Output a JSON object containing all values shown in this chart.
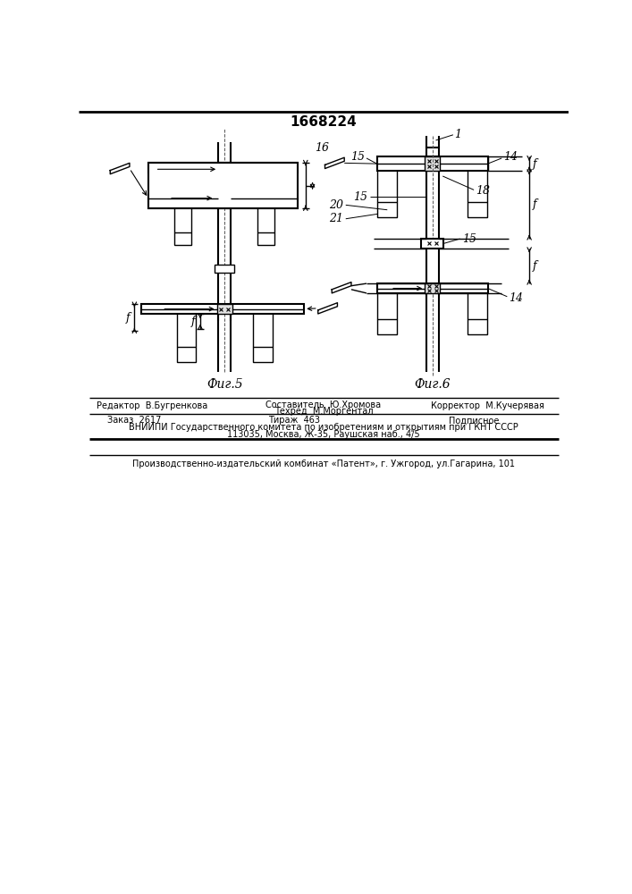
{
  "title": "1668224",
  "fig5_label": "Фиг.5",
  "fig6_label": "Фиг.6",
  "bg_color": "#ffffff",
  "line_color": "#000000",
  "footer_row1_left": "Редактор  В.Бугренкова",
  "footer_row1_mid1": "Составитель  Ю.Хромова",
  "footer_row1_mid2": "Техред  М.Моргентал",
  "footer_row1_right": "Корректор  М.Кучерявая",
  "footer_row2_a": "Заказ  2617",
  "footer_row2_b": "Тираж  463",
  "footer_row2_c": "Подписное",
  "footer_row3": "ВНИИПИ Государственного комитета по изобретениям и открытиям при ГКНТ СССР",
  "footer_row4": "113035, Москва, Ж-35, Раушская наб., 4/5",
  "footer_row5": "Производственно-издательский комбинат «Патент», г. Ужгород, ул.Гагарина, 101"
}
